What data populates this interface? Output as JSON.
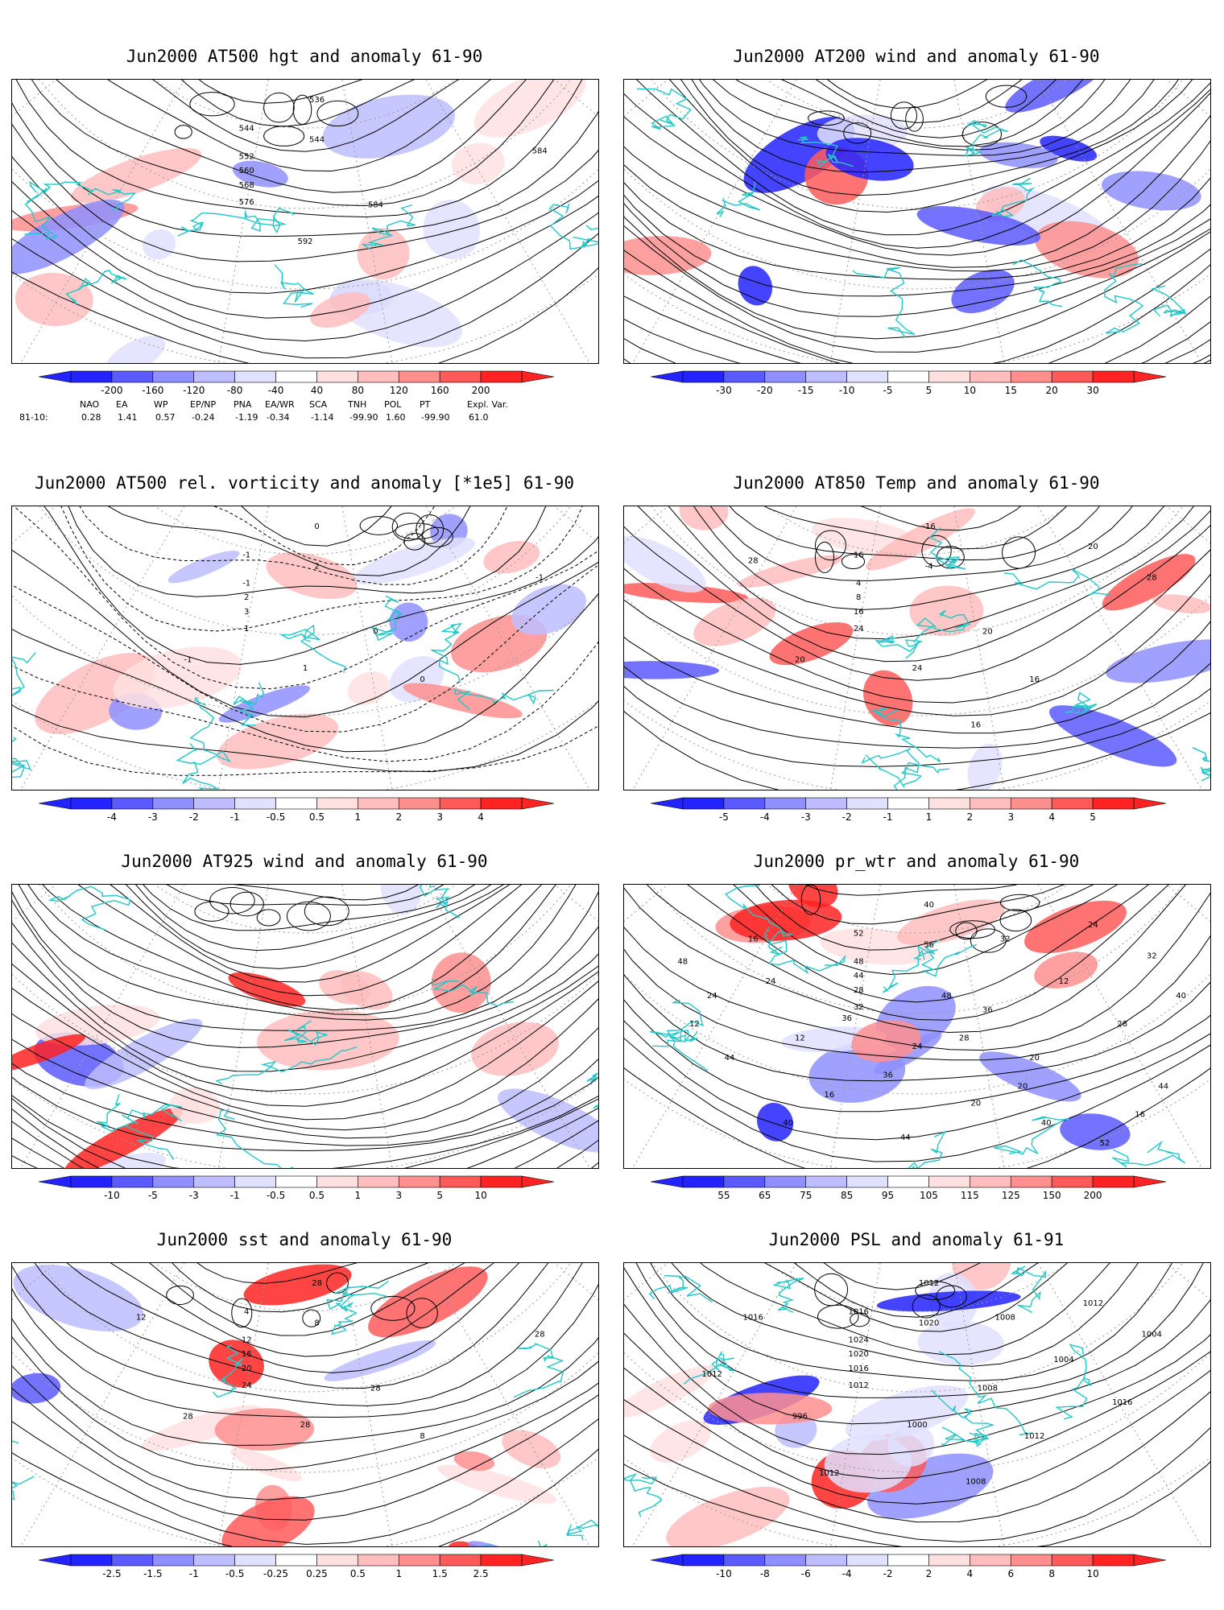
{
  "colors": {
    "coast": "#22c7c7",
    "contour": "#000000",
    "grid": "#9a9a9a",
    "blue_scale": [
      "#2323ff",
      "#5a5aff",
      "#8f8fff",
      "#bdbdff",
      "#e0e0ff"
    ],
    "red_scale": [
      "#ffe0e0",
      "#ffbdbd",
      "#ff8f8f",
      "#ff5a5a",
      "#ff2323"
    ]
  },
  "panels": [
    {
      "id": "at500-hgt",
      "title": "Jun2000 AT500 hgt and anomaly 61-90",
      "colorbar_ticks": [
        "-200",
        "-160",
        "-120",
        "-80",
        "-40",
        "40",
        "80",
        "120",
        "160",
        "200"
      ],
      "contour_labels": [
        "536",
        "544",
        "544",
        "552",
        "560",
        "568",
        "576",
        "584",
        "584",
        "592"
      ],
      "field": "height"
    },
    {
      "id": "at200-wind",
      "title": "Jun2000 AT200 wind and anomaly 61-90",
      "colorbar_ticks": [
        "-30",
        "-20",
        "-15",
        "-10",
        "-5",
        "5",
        "10",
        "15",
        "20",
        "30"
      ],
      "contour_labels": [],
      "field": "streamlines"
    },
    {
      "id": "at500-vort",
      "title": "Jun2000 AT500 rel. vorticity and anomaly [*1e5] 61-90",
      "colorbar_ticks": [
        "-4",
        "-3",
        "-2",
        "-1",
        "-0.5",
        "0.5",
        "1",
        "2",
        "3",
        "4"
      ],
      "contour_labels": [
        "0",
        "-1",
        "2",
        "-1",
        "2",
        "3",
        "1",
        "0",
        "-1",
        "1",
        "-1",
        "0"
      ],
      "field": "vorticity"
    },
    {
      "id": "at850-temp",
      "title": "Jun2000 AT850 Temp and anomaly 61-90",
      "colorbar_ticks": [
        "-5",
        "-4",
        "-3",
        "-2",
        "-1",
        "1",
        "2",
        "3",
        "4",
        "5"
      ],
      "contour_labels": [
        "-16",
        "16",
        "-4",
        "4",
        "8",
        "16",
        "24",
        "20",
        "28",
        "24",
        "20",
        "16",
        "28",
        "20",
        "16"
      ],
      "field": "temperature"
    },
    {
      "id": "at925-wind",
      "title": "Jun2000 AT925 wind and anomaly 61-90",
      "colorbar_ticks": [
        "-10",
        "-5",
        "-3",
        "-1",
        "-0.5",
        "0.5",
        "1",
        "3",
        "5",
        "10"
      ],
      "contour_labels": [],
      "field": "streamlines"
    },
    {
      "id": "pr-wtr",
      "title": "Jun2000 pr_wtr and anomaly 61-90",
      "colorbar_ticks": [
        "55",
        "65",
        "75",
        "85",
        "95",
        "105",
        "115",
        "125",
        "150",
        "200"
      ],
      "contour_labels": [
        "40",
        "52",
        "56",
        "48",
        "44",
        "28",
        "32",
        "36",
        "32",
        "24",
        "12",
        "20",
        "16",
        "24",
        "20",
        "16",
        "28",
        "12",
        "24",
        "32",
        "36",
        "40",
        "44",
        "48",
        "44",
        "40",
        "44",
        "52",
        "48",
        "40",
        "36",
        "28",
        "24",
        "20",
        "16",
        "12"
      ],
      "field": "precipitable water"
    },
    {
      "id": "sst",
      "title": "Jun2000 sst and anomaly 61-90",
      "colorbar_ticks": [
        "-2.5",
        "-1.5",
        "-1",
        "-0.5",
        "-0.25",
        "0.25",
        "0.5",
        "1",
        "1.5",
        "2.5"
      ],
      "contour_labels": [
        "28",
        "4",
        "8",
        "12",
        "16",
        "20",
        "24",
        "28",
        "28",
        "28",
        "28",
        "8",
        "12"
      ],
      "field": "sst"
    },
    {
      "id": "psl",
      "title": "Jun2000 PSL and anomaly 61-91",
      "colorbar_ticks": [
        "-10",
        "-8",
        "-6",
        "-4",
        "-2",
        "2",
        "4",
        "6",
        "8",
        "10"
      ],
      "contour_labels": [
        "1012",
        "1016",
        "1020",
        "1024",
        "1020",
        "1016",
        "1012",
        "1008",
        "1004",
        "1000",
        "996",
        "1012",
        "1016",
        "1012",
        "1008",
        "1012",
        "1016",
        "1004",
        "1012",
        "1008"
      ],
      "field": "pressure"
    }
  ],
  "teleconnections": {
    "row_label": "81-10:",
    "columns": [
      {
        "name": "NAO",
        "value": "0.28"
      },
      {
        "name": "EA",
        "value": "1.41"
      },
      {
        "name": "WP",
        "value": "0.57"
      },
      {
        "name": "EP/NP",
        "value": "-0.24"
      },
      {
        "name": "PNA",
        "value": "-1.19"
      },
      {
        "name": "EA/WR",
        "value": "-0.34"
      },
      {
        "name": "SCA",
        "value": "-1.14"
      },
      {
        "name": "TNH",
        "value": "-99.90"
      },
      {
        "name": "POL",
        "value": "1.60"
      },
      {
        "name": "PT",
        "value": "-99.90"
      },
      {
        "name": "Expl. Var.",
        "value": "61.0"
      }
    ]
  }
}
